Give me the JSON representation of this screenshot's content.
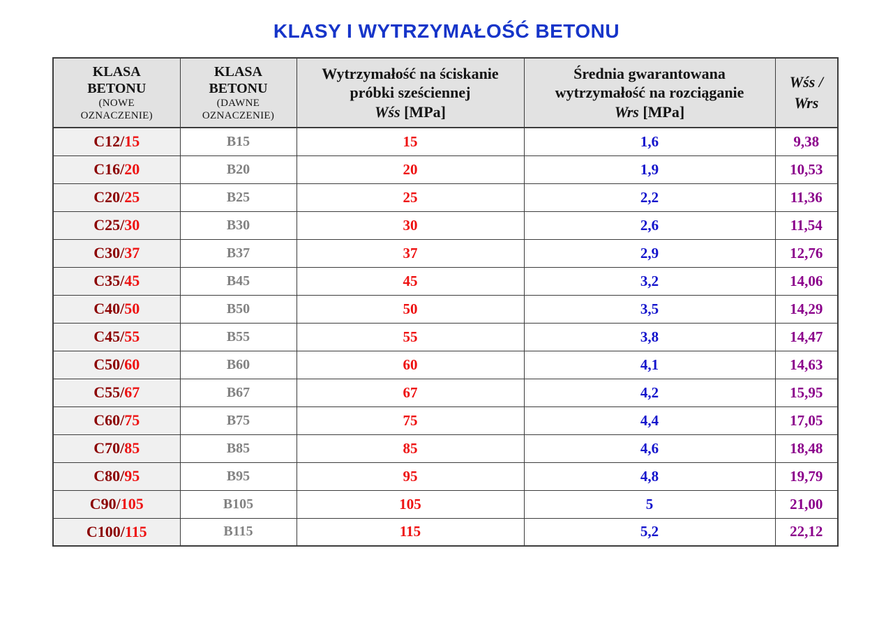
{
  "title": {
    "text": "KLASY I WYTRZYMAŁOŚĆ BETONU"
  },
  "colors": {
    "title": "#1635c9",
    "new_prefix": "#8b0000",
    "new_suffix": "#ee1111",
    "old_class": "#828282",
    "wss": "#ee1111",
    "wrs": "#1414cc",
    "ratio": "#8b008b",
    "header_bg": "#e2e2e2",
    "col1_bg": "#f0f0f0",
    "border": "#3c3c3c"
  },
  "header": {
    "col1_line1": "KLASA",
    "col1_line2": "BETONU",
    "col1_sub1": "(NOWE",
    "col1_sub2": "OZNACZENIE)",
    "col2_line1": "KLASA",
    "col2_line2": "BETONU",
    "col2_sub1": "(DAWNE",
    "col2_sub2": "OZNACZENIE)",
    "col3_line1": "Wytrzymałość na ściskanie",
    "col3_line2": "próbki sześciennej",
    "col3_sym": "Wśs",
    "col3_unit": " [MPa]",
    "col4_line1": "Średnia gwarantowana",
    "col4_line2": "wytrzymałość na rozciąganie",
    "col4_sym": "Wrs",
    "col4_unit": " [MPa]",
    "col5_line1": "Wśs /",
    "col5_line2": "Wrs"
  },
  "rows": [
    {
      "new_prefix": "C12/",
      "new_suffix": "15",
      "old": "B15",
      "wss": "15",
      "wrs": "1,6",
      "ratio": "9,38"
    },
    {
      "new_prefix": "C16/",
      "new_suffix": "20",
      "old": "B20",
      "wss": "20",
      "wrs": "1,9",
      "ratio": "10,53"
    },
    {
      "new_prefix": "C20/",
      "new_suffix": "25",
      "old": "B25",
      "wss": "25",
      "wrs": "2,2",
      "ratio": "11,36"
    },
    {
      "new_prefix": "C25/",
      "new_suffix": "30",
      "old": "B30",
      "wss": "30",
      "wrs": "2,6",
      "ratio": "11,54"
    },
    {
      "new_prefix": "C30/",
      "new_suffix": "37",
      "old": "B37",
      "wss": "37",
      "wrs": "2,9",
      "ratio": "12,76"
    },
    {
      "new_prefix": "C35/",
      "new_suffix": "45",
      "old": "B45",
      "wss": "45",
      "wrs": "3,2",
      "ratio": "14,06"
    },
    {
      "new_prefix": "C40/",
      "new_suffix": "50",
      "old": "B50",
      "wss": "50",
      "wrs": "3,5",
      "ratio": "14,29"
    },
    {
      "new_prefix": "C45/",
      "new_suffix": "55",
      "old": "B55",
      "wss": "55",
      "wrs": "3,8",
      "ratio": "14,47"
    },
    {
      "new_prefix": "C50/",
      "new_suffix": "60",
      "old": "B60",
      "wss": "60",
      "wrs": "4,1",
      "ratio": "14,63"
    },
    {
      "new_prefix": "C55/",
      "new_suffix": "67",
      "old": "B67",
      "wss": "67",
      "wrs": "4,2",
      "ratio": "15,95"
    },
    {
      "new_prefix": "C60/",
      "new_suffix": "75",
      "old": "B75",
      "wss": "75",
      "wrs": "4,4",
      "ratio": "17,05"
    },
    {
      "new_prefix": "C70/",
      "new_suffix": "85",
      "old": "B85",
      "wss": "85",
      "wrs": "4,6",
      "ratio": "18,48"
    },
    {
      "new_prefix": "C80/",
      "new_suffix": "95",
      "old": "B95",
      "wss": "95",
      "wrs": "4,8",
      "ratio": "19,79"
    },
    {
      "new_prefix": "C90/",
      "new_suffix": "105",
      "old": "B105",
      "wss": "105",
      "wrs": "5",
      "ratio": "21,00"
    },
    {
      "new_prefix": "C100/",
      "new_suffix": "115",
      "old": "B115",
      "wss": "115",
      "wrs": "5,2",
      "ratio": "22,12"
    }
  ]
}
